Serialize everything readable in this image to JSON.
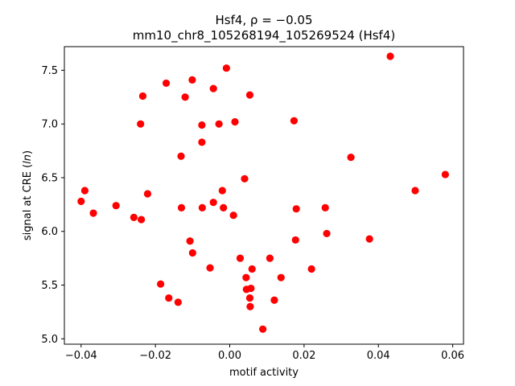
{
  "chart_data": {
    "type": "scatter",
    "title": "Hsf4, ρ = −0.05",
    "subtitle": "mm10_chr8_105268194_105269524 (Hsf4)",
    "xlabel": "motif activity",
    "ylabel": "signal at CRE (ln)",
    "xlim": [
      -0.0445,
      0.0629
    ],
    "ylim": [
      4.95,
      7.72
    ],
    "xticks": [
      -0.04,
      -0.02,
      0.0,
      0.02,
      0.04,
      0.06
    ],
    "xtick_labels": [
      "−0.04",
      "−0.02",
      "0.00",
      "0.02",
      "0.04",
      "0.06"
    ],
    "yticks": [
      5.0,
      5.5,
      6.0,
      6.5,
      7.0,
      7.5
    ],
    "ytick_labels": [
      "5.0",
      "5.5",
      "6.0",
      "6.5",
      "7.0",
      "7.5"
    ],
    "grid": false,
    "marker_color": "#ff0000",
    "points": [
      {
        "x": -0.04,
        "y": 6.28
      },
      {
        "x": -0.039,
        "y": 6.38
      },
      {
        "x": -0.0367,
        "y": 6.17
      },
      {
        "x": -0.0306,
        "y": 6.24
      },
      {
        "x": -0.0258,
        "y": 6.13
      },
      {
        "x": -0.0238,
        "y": 6.11
      },
      {
        "x": -0.024,
        "y": 7.0
      },
      {
        "x": -0.0234,
        "y": 7.26
      },
      {
        "x": -0.0221,
        "y": 6.35
      },
      {
        "x": -0.0186,
        "y": 5.51
      },
      {
        "x": -0.0171,
        "y": 7.38
      },
      {
        "x": -0.0164,
        "y": 5.38
      },
      {
        "x": -0.0139,
        "y": 5.34
      },
      {
        "x": -0.0131,
        "y": 6.7
      },
      {
        "x": -0.013,
        "y": 6.22
      },
      {
        "x": -0.012,
        "y": 7.25
      },
      {
        "x": -0.0107,
        "y": 5.91
      },
      {
        "x": -0.0101,
        "y": 7.41
      },
      {
        "x": -0.01,
        "y": 5.8
      },
      {
        "x": -0.0075,
        "y": 6.99
      },
      {
        "x": -0.0075,
        "y": 6.83
      },
      {
        "x": -0.0074,
        "y": 6.22
      },
      {
        "x": -0.0053,
        "y": 5.66
      },
      {
        "x": -0.0044,
        "y": 7.33
      },
      {
        "x": -0.0044,
        "y": 6.27
      },
      {
        "x": -0.0029,
        "y": 7.0
      },
      {
        "x": -0.002,
        "y": 6.38
      },
      {
        "x": -0.0017,
        "y": 6.22
      },
      {
        "x": -0.0009,
        "y": 7.52
      },
      {
        "x": 0.001,
        "y": 6.15
      },
      {
        "x": 0.0014,
        "y": 7.02
      },
      {
        "x": 0.0028,
        "y": 5.75
      },
      {
        "x": 0.004,
        "y": 6.49
      },
      {
        "x": 0.0044,
        "y": 5.57
      },
      {
        "x": 0.0045,
        "y": 5.46
      },
      {
        "x": 0.0054,
        "y": 7.27
      },
      {
        "x": 0.0054,
        "y": 5.38
      },
      {
        "x": 0.0055,
        "y": 5.3
      },
      {
        "x": 0.0057,
        "y": 5.47
      },
      {
        "x": 0.006,
        "y": 5.65
      },
      {
        "x": 0.0089,
        "y": 5.09
      },
      {
        "x": 0.0108,
        "y": 5.75
      },
      {
        "x": 0.012,
        "y": 5.36
      },
      {
        "x": 0.0138,
        "y": 5.57
      },
      {
        "x": 0.0173,
        "y": 7.03
      },
      {
        "x": 0.0177,
        "y": 5.92
      },
      {
        "x": 0.0179,
        "y": 6.21
      },
      {
        "x": 0.022,
        "y": 5.65
      },
      {
        "x": 0.0257,
        "y": 6.22
      },
      {
        "x": 0.0261,
        "y": 5.98
      },
      {
        "x": 0.0326,
        "y": 6.69
      },
      {
        "x": 0.0376,
        "y": 5.93
      },
      {
        "x": 0.0432,
        "y": 7.63
      },
      {
        "x": 0.0499,
        "y": 6.38
      },
      {
        "x": 0.058,
        "y": 6.53
      }
    ]
  }
}
